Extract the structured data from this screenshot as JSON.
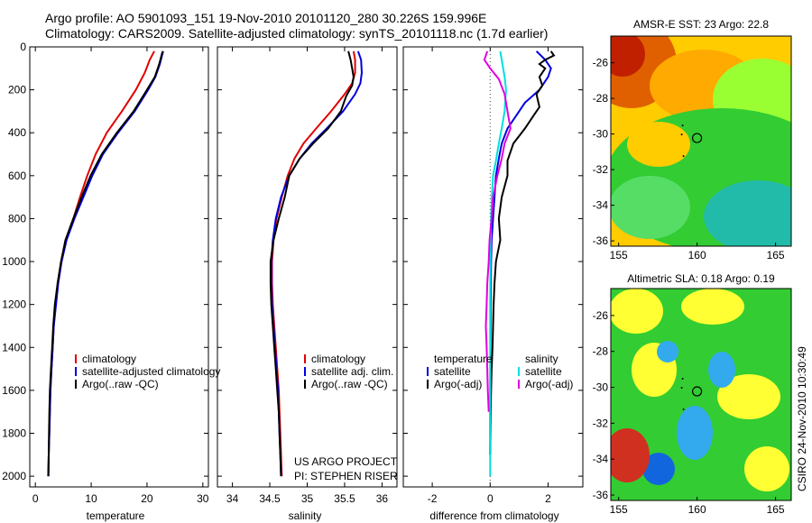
{
  "header": {
    "line1": "Argo profile: AO 5901093_151 19-Nov-2010 20101120_280 30.226S 159.996E",
    "line2": "Climatology: CARS2009. Satellite-adjusted climatology: synTS_20101118.nc (1.7d earlier)"
  },
  "credit": "CSIRO 24-Nov-2010 10:30:49",
  "colors": {
    "climatology": "#e00000",
    "satellite": "#0000e0",
    "argo": "#000000",
    "temp_satellite": "#00e0e0",
    "temp_argo": "#e000e0",
    "zero_line": "#444444"
  },
  "chart_data": [
    {
      "type": "line",
      "xlabel": "temperature",
      "xlim": [
        -1,
        31
      ],
      "ylim": [
        2050,
        0
      ],
      "x_ticks": [
        0,
        10,
        20,
        30
      ],
      "y_ticks": [
        0,
        200,
        400,
        600,
        800,
        1000,
        1200,
        1400,
        1600,
        1800,
        2000
      ],
      "y_reversed": true,
      "legend_location": "lower-center",
      "legend": [
        "climatology",
        "satellite-adjusted climatology",
        "Argo(..raw -QC)"
      ],
      "series": [
        {
          "name": "climatology",
          "color": "#e00000",
          "points": [
            [
              21.3,
              20
            ],
            [
              20.5,
              60
            ],
            [
              19.6,
              120
            ],
            [
              18.0,
              200
            ],
            [
              15.5,
              300
            ],
            [
              12.8,
              400
            ],
            [
              10.8,
              500
            ],
            [
              9.3,
              600
            ],
            [
              8.0,
              700
            ],
            [
              6.8,
              800
            ],
            [
              5.4,
              900
            ],
            [
              4.6,
              1000
            ],
            [
              4.0,
              1100
            ],
            [
              3.6,
              1200
            ],
            [
              3.3,
              1300
            ],
            [
              3.1,
              1400
            ],
            [
              2.9,
              1500
            ],
            [
              2.7,
              1600
            ],
            [
              2.6,
              1700
            ],
            [
              2.5,
              1800
            ],
            [
              2.4,
              1900
            ],
            [
              2.35,
              2000
            ]
          ]
        },
        {
          "name": "satellite-adjusted climatology",
          "color": "#0000e0",
          "points": [
            [
              22.9,
              20
            ],
            [
              22.7,
              40
            ],
            [
              22.3,
              80
            ],
            [
              21.5,
              140
            ],
            [
              20.2,
              200
            ],
            [
              17.8,
              300
            ],
            [
              14.8,
              400
            ],
            [
              12.1,
              500
            ],
            [
              10.2,
              600
            ],
            [
              8.6,
              700
            ],
            [
              7.0,
              800
            ],
            [
              5.6,
              900
            ],
            [
              4.7,
              1000
            ],
            [
              4.1,
              1100
            ],
            [
              3.7,
              1200
            ],
            [
              3.3,
              1300
            ],
            [
              3.1,
              1400
            ],
            [
              2.9,
              1500
            ],
            [
              2.7,
              1600
            ],
            [
              2.6,
              1700
            ],
            [
              2.5,
              1800
            ],
            [
              2.4,
              1900
            ],
            [
              2.35,
              2000
            ]
          ]
        },
        {
          "name": "Argo(..raw -QC)",
          "color": "#000000",
          "points": [
            [
              22.8,
              20
            ],
            [
              22.6,
              40
            ],
            [
              22.2,
              80
            ],
            [
              21.4,
              140
            ],
            [
              20.0,
              200
            ],
            [
              17.6,
              300
            ],
            [
              14.6,
              400
            ],
            [
              11.9,
              500
            ],
            [
              9.9,
              600
            ],
            [
              8.3,
              700
            ],
            [
              6.8,
              800
            ],
            [
              5.4,
              900
            ],
            [
              4.6,
              1000
            ],
            [
              4.0,
              1100
            ],
            [
              3.5,
              1200
            ],
            [
              3.2,
              1300
            ],
            [
              3.0,
              1400
            ],
            [
              2.8,
              1500
            ],
            [
              2.6,
              1600
            ],
            [
              2.5,
              1700
            ],
            [
              2.45,
              1800
            ],
            [
              2.4,
              1900
            ],
            [
              2.3,
              2000
            ]
          ]
        }
      ]
    },
    {
      "type": "line",
      "xlabel": "salinity",
      "xlim": [
        33.8,
        36.2
      ],
      "ylim": [
        2050,
        0
      ],
      "x_ticks": [
        34,
        34.5,
        35,
        35.5,
        36
      ],
      "y_reversed": true,
      "legend_location": "lower-right",
      "legend": [
        "climatology",
        "satellite adj. clim.",
        "Argo(..raw -QC)"
      ],
      "annotation": [
        "US ARGO PROJECT",
        "PI: STEPHEN RISER"
      ],
      "series": [
        {
          "name": "climatology",
          "color": "#e00000",
          "points": [
            [
              35.62,
              20
            ],
            [
              35.64,
              60
            ],
            [
              35.64,
              120
            ],
            [
              35.6,
              170
            ],
            [
              35.5,
              220
            ],
            [
              35.32,
              300
            ],
            [
              35.12,
              380
            ],
            [
              34.95,
              450
            ],
            [
              34.83,
              520
            ],
            [
              34.74,
              600
            ],
            [
              34.66,
              700
            ],
            [
              34.59,
              800
            ],
            [
              34.55,
              900
            ],
            [
              34.53,
              1000
            ],
            [
              34.53,
              1100
            ],
            [
              34.54,
              1200
            ],
            [
              34.56,
              1300
            ],
            [
              34.58,
              1400
            ],
            [
              34.6,
              1500
            ],
            [
              34.62,
              1600
            ],
            [
              34.63,
              1700
            ],
            [
              34.64,
              1800
            ],
            [
              34.65,
              1900
            ],
            [
              34.66,
              2000
            ]
          ]
        },
        {
          "name": "satellite adj. clim.",
          "color": "#0000e0",
          "points": [
            [
              35.68,
              20
            ],
            [
              35.72,
              60
            ],
            [
              35.73,
              120
            ],
            [
              35.71,
              170
            ],
            [
              35.64,
              220
            ],
            [
              35.48,
              300
            ],
            [
              35.26,
              380
            ],
            [
              35.06,
              450
            ],
            [
              34.9,
              520
            ],
            [
              34.76,
              600
            ],
            [
              34.65,
              700
            ],
            [
              34.58,
              800
            ],
            [
              34.54,
              900
            ],
            [
              34.52,
              1000
            ],
            [
              34.52,
              1100
            ],
            [
              34.53,
              1200
            ],
            [
              34.55,
              1300
            ],
            [
              34.57,
              1400
            ],
            [
              34.59,
              1500
            ],
            [
              34.61,
              1600
            ],
            [
              34.62,
              1700
            ],
            [
              34.63,
              1800
            ],
            [
              34.64,
              1900
            ],
            [
              34.65,
              2000
            ]
          ]
        },
        {
          "name": "Argo(..raw -QC)",
          "color": "#000000",
          "points": [
            [
              35.55,
              20
            ],
            [
              35.58,
              60
            ],
            [
              35.6,
              100
            ],
            [
              35.62,
              140
            ],
            [
              35.6,
              180
            ],
            [
              35.52,
              230
            ],
            [
              35.45,
              300
            ],
            [
              35.28,
              380
            ],
            [
              35.08,
              450
            ],
            [
              34.9,
              520
            ],
            [
              34.76,
              600
            ],
            [
              34.7,
              700
            ],
            [
              34.62,
              800
            ],
            [
              34.55,
              900
            ],
            [
              34.51,
              1000
            ],
            [
              34.51,
              1100
            ],
            [
              34.52,
              1200
            ],
            [
              34.54,
              1300
            ],
            [
              34.56,
              1400
            ],
            [
              34.58,
              1500
            ],
            [
              34.6,
              1600
            ],
            [
              34.62,
              1700
            ],
            [
              34.63,
              1800
            ],
            [
              34.64,
              1900
            ],
            [
              34.65,
              2000
            ]
          ]
        }
      ]
    },
    {
      "type": "line",
      "xlabel": "difference from climatology",
      "xlim": [
        -3,
        3.2
      ],
      "ylim": [
        2050,
        0
      ],
      "x_ticks": [
        -2,
        0,
        2
      ],
      "y_reversed": true,
      "zero_line": true,
      "legend_location": "lower-center",
      "legend_groups": [
        {
          "title": "temperature",
          "items": [
            "satellite",
            "Argo(-adj)"
          ]
        },
        {
          "title": "salinity",
          "items": [
            "satellite",
            "Argo(-adj)"
          ]
        }
      ],
      "series": [
        {
          "name": "temperature satellite",
          "color": "#0000e0",
          "points": [
            [
              1.6,
              20
            ],
            [
              1.9,
              60
            ],
            [
              2.1,
              100
            ],
            [
              2.0,
              140
            ],
            [
              1.7,
              200
            ],
            [
              1.2,
              260
            ],
            [
              0.9,
              320
            ],
            [
              0.6,
              380
            ],
            [
              0.4,
              450
            ],
            [
              0.3,
              520
            ],
            [
              0.2,
              600
            ],
            [
              0.15,
              700
            ],
            [
              0.1,
              800
            ],
            [
              0.05,
              900
            ],
            [
              0.03,
              1000
            ],
            [
              0.02,
              1200
            ],
            [
              0.01,
              1400
            ],
            [
              0.0,
              1600
            ],
            [
              0.0,
              1800
            ],
            [
              0.0,
              1900
            ]
          ]
        },
        {
          "name": "temperature Argo(-adj)",
          "color": "#000000",
          "points": [
            [
              2.1,
              20
            ],
            [
              2.2,
              40
            ],
            [
              1.9,
              60
            ],
            [
              1.7,
              80
            ],
            [
              1.9,
              100
            ],
            [
              1.7,
              140
            ],
            [
              1.8,
              180
            ],
            [
              1.6,
              220
            ],
            [
              1.7,
              280
            ],
            [
              1.5,
              320
            ],
            [
              1.2,
              380
            ],
            [
              0.8,
              450
            ],
            [
              0.6,
              530
            ],
            [
              0.6,
              600
            ],
            [
              0.4,
              700
            ],
            [
              0.3,
              800
            ],
            [
              0.35,
              900
            ],
            [
              0.2,
              1000
            ],
            [
              0.15,
              1100
            ],
            [
              0.12,
              1200
            ],
            [
              0.1,
              1300
            ],
            [
              0.08,
              1400
            ],
            [
              0.05,
              1500
            ],
            [
              0.03,
              1600
            ],
            [
              0.02,
              1700
            ],
            [
              0.01,
              1800
            ],
            [
              0.0,
              1900
            ]
          ]
        },
        {
          "name": "salinity satellite",
          "color": "#00e0e0",
          "points": [
            [
              0.35,
              20
            ],
            [
              0.4,
              60
            ],
            [
              0.45,
              100
            ],
            [
              0.5,
              140
            ],
            [
              0.55,
              200
            ],
            [
              0.5,
              300
            ],
            [
              0.4,
              380
            ],
            [
              0.3,
              450
            ],
            [
              0.2,
              530
            ],
            [
              0.1,
              600
            ],
            [
              0.06,
              700
            ],
            [
              0.03,
              800
            ],
            [
              0.02,
              900
            ],
            [
              0.01,
              1000
            ],
            [
              0.0,
              1200
            ],
            [
              0.0,
              1600
            ],
            [
              0.0,
              2000
            ]
          ]
        },
        {
          "name": "salinity Argo(-adj)",
          "color": "#e000e0",
          "points": [
            [
              -0.1,
              20
            ],
            [
              -0.2,
              60
            ],
            [
              0.0,
              100
            ],
            [
              0.3,
              150
            ],
            [
              0.5,
              220
            ],
            [
              0.6,
              300
            ],
            [
              0.7,
              380
            ],
            [
              0.5,
              450
            ],
            [
              0.4,
              520
            ],
            [
              0.25,
              600
            ],
            [
              0.1,
              700
            ],
            [
              0.05,
              800
            ],
            [
              -0.02,
              900
            ],
            [
              -0.05,
              1000
            ],
            [
              -0.1,
              1100
            ],
            [
              -0.12,
              1200
            ],
            [
              -0.15,
              1300
            ],
            [
              -0.12,
              1400
            ],
            [
              -0.1,
              1500
            ],
            [
              -0.08,
              1600
            ],
            [
              -0.05,
              1700
            ]
          ]
        }
      ]
    },
    {
      "type": "heatmap",
      "title": "AMSR-E SST: 23 Argo: 22.8",
      "xlim": [
        154.5,
        166
      ],
      "ylim": [
        -36.3,
        -24.5
      ],
      "x_ticks": [
        155,
        160,
        165
      ],
      "y_ticks": [
        -26,
        -28,
        -30,
        -32,
        -34,
        -36
      ],
      "marker": {
        "lon": 159.996,
        "lat": -30.226
      },
      "colormap": "jet"
    },
    {
      "type": "heatmap",
      "title": "Altimetric SLA: 0.18 Argo: 0.19",
      "xlim": [
        154.5,
        166
      ],
      "ylim": [
        -36.3,
        -24.5
      ],
      "x_ticks": [
        155,
        160,
        165
      ],
      "y_ticks": [
        -26,
        -28,
        -30,
        -32,
        -34,
        -36
      ],
      "marker": {
        "lon": 159.996,
        "lat": -30.226
      },
      "colormap": "jet"
    }
  ]
}
